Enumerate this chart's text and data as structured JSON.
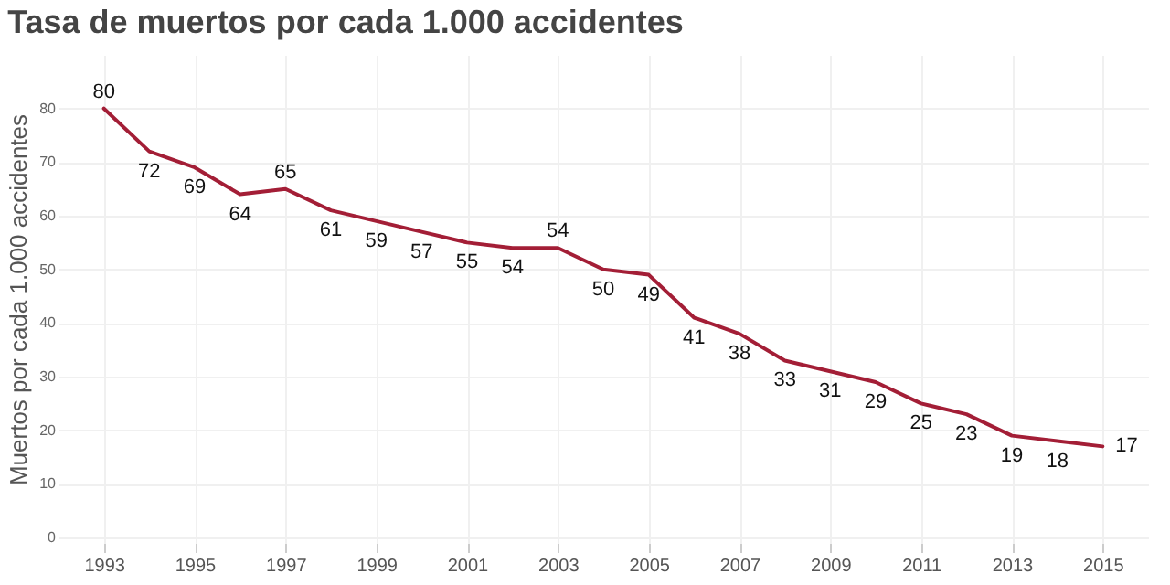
{
  "chart_data": {
    "type": "line",
    "title": "Tasa de muertos por cada 1.000 accidentes",
    "ylabel": "Muertos por cada 1.000 accidentes",
    "x": [
      1993,
      1994,
      1995,
      1996,
      1997,
      1998,
      1999,
      2000,
      2001,
      2002,
      2003,
      2004,
      2005,
      2006,
      2007,
      2008,
      2009,
      2010,
      2011,
      2012,
      2013,
      2014,
      2015
    ],
    "series": [
      {
        "color": "#a31e36",
        "values": [
          80,
          72,
          69,
          64,
          65,
          61,
          59,
          57,
          55,
          54,
          54,
          50,
          49,
          41,
          38,
          33,
          31,
          29,
          25,
          23,
          19,
          18,
          17
        ]
      }
    ],
    "xlim": [
      1992,
      2016
    ],
    "xticks": [
      1993,
      1995,
      1997,
      1999,
      2001,
      2003,
      2005,
      2007,
      2009,
      2011,
      2013,
      2015
    ],
    "ylim": [
      -1,
      90
    ],
    "yticks": [
      0,
      10,
      20,
      30,
      40,
      50,
      60,
      70,
      80
    ],
    "grid": true,
    "data_labels": true,
    "marker": "none",
    "line_style": "solid"
  }
}
